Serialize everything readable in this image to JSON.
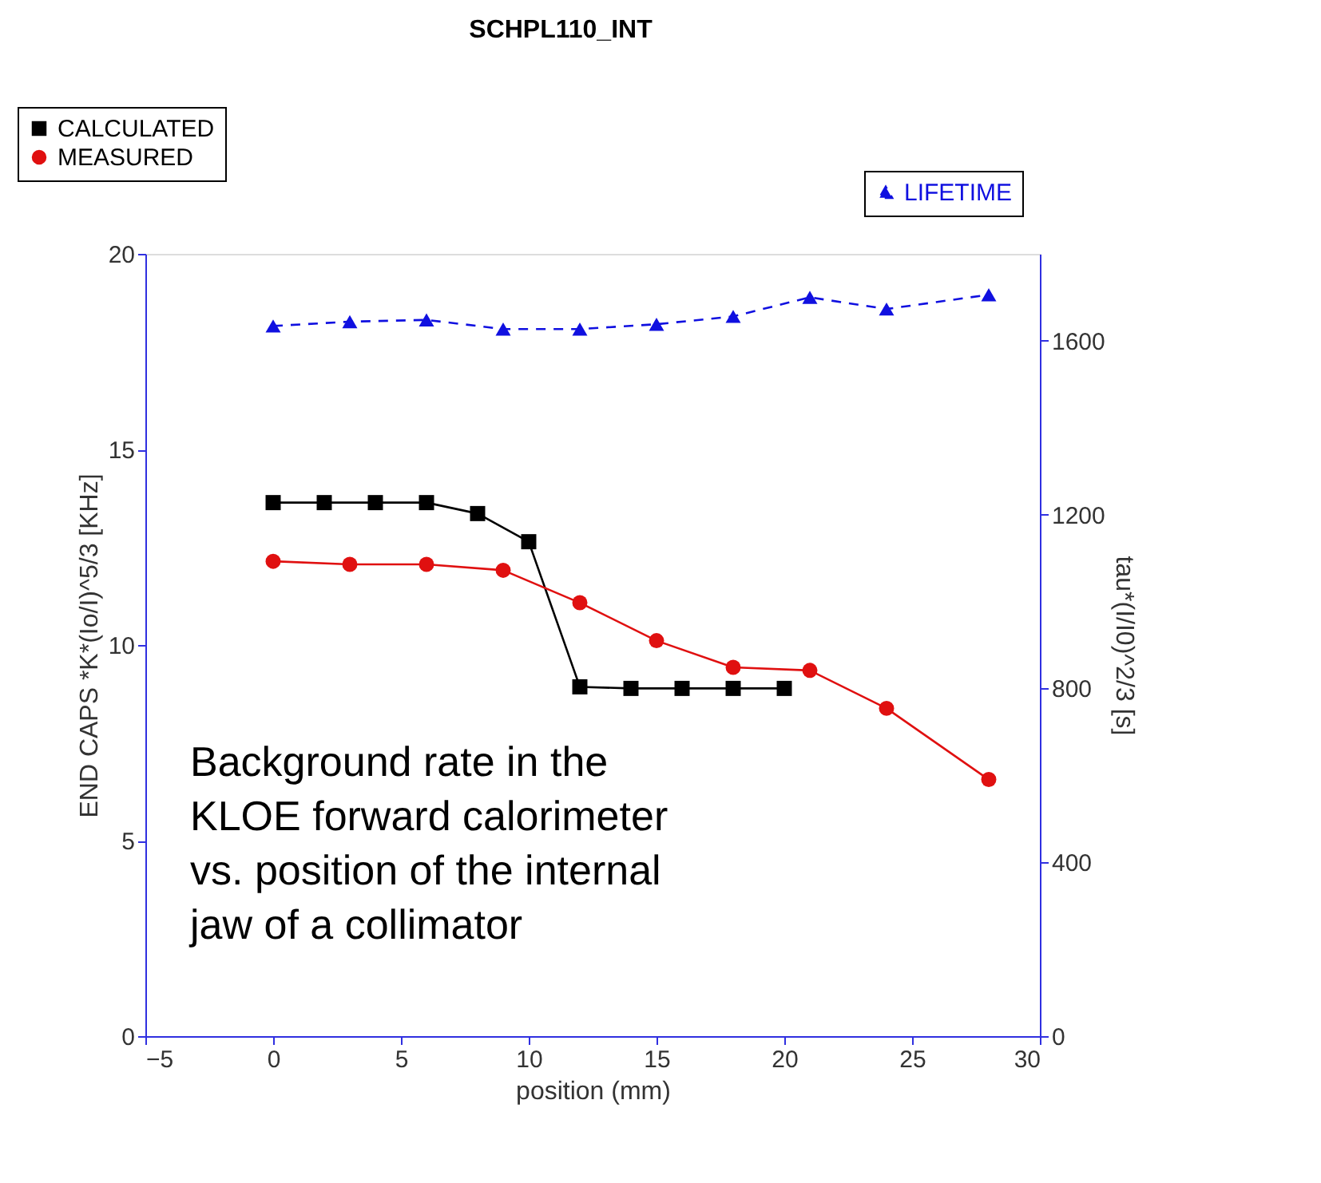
{
  "chart_data": {
    "type": "line",
    "title": "SCHPL110_INT",
    "xlabel": "position (mm)",
    "ylabel": "END CAPS *K*(Io/I)^5/3 [KHz]",
    "y2label": "tau*(I/I0)^2/3 [s]",
    "xlim": [
      -5,
      30
    ],
    "xticks": [
      -5,
      0,
      5,
      10,
      15,
      20,
      25,
      30
    ],
    "ylim": [
      0,
      20
    ],
    "yticks": [
      0,
      5,
      10,
      15,
      20
    ],
    "y2lim": [
      0,
      1800
    ],
    "y2ticks": [
      0,
      400,
      800,
      1200,
      1600
    ],
    "grid": false,
    "legend": "top",
    "series": [
      {
        "name": "CALCULATED",
        "color": "#000000",
        "marker": "square",
        "line_style": "solid",
        "x": [
          0,
          2,
          4,
          6,
          8,
          10,
          12,
          14,
          16,
          18,
          20
        ],
        "values": [
          13.64,
          13.64,
          13.64,
          13.64,
          13.36,
          12.64,
          8.93,
          8.89,
          8.89,
          8.89,
          8.89
        ]
      },
      {
        "name": "MEASURED",
        "color": "#e01010",
        "marker": "circle",
        "line_style": "solid",
        "x": [
          0,
          3,
          6,
          9,
          12,
          15,
          18,
          21,
          24,
          28
        ],
        "values": [
          12.14,
          12.06,
          12.06,
          11.91,
          11.08,
          10.11,
          9.43,
          9.35,
          8.38,
          6.56
        ]
      },
      {
        "name": "LIFETIME",
        "color": "#1010e0",
        "marker": "triangle",
        "line_style": "dashed",
        "axis": "y2",
        "x": [
          0,
          3,
          6,
          9,
          12,
          15,
          18,
          21,
          24,
          28
        ],
        "values": [
          1634,
          1644,
          1648,
          1627,
          1627,
          1638,
          1656,
          1700,
          1673,
          1706
        ]
      }
    ],
    "annotations": [
      "Background rate in the\nKLOE forward calorimeter\nvs. position of the internal\njaw of a collimator"
    ]
  }
}
